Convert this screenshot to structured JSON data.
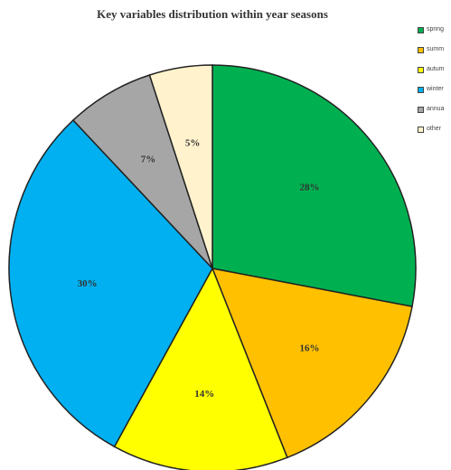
{
  "chart_data": {
    "type": "pie",
    "title": "Key variables distribution within year seasons",
    "slices": [
      {
        "label": "spring",
        "value": 28,
        "display": "28%",
        "color": "#00b050"
      },
      {
        "label": "summ",
        "value": 16,
        "display": "16%",
        "color": "#ffc000"
      },
      {
        "label": "autum",
        "value": 14,
        "display": "14%",
        "color": "#ffff00"
      },
      {
        "label": "winter",
        "value": 30,
        "display": "30%",
        "color": "#00b0f0"
      },
      {
        "label": "annua",
        "value": 7,
        "display": "7%",
        "color": "#a6a6a6"
      },
      {
        "label": "other",
        "value": 5,
        "display": "5%",
        "color": "#fff2cc"
      }
    ],
    "legend_position": "right",
    "start": "12 o'clock",
    "direction": "clockwise"
  }
}
